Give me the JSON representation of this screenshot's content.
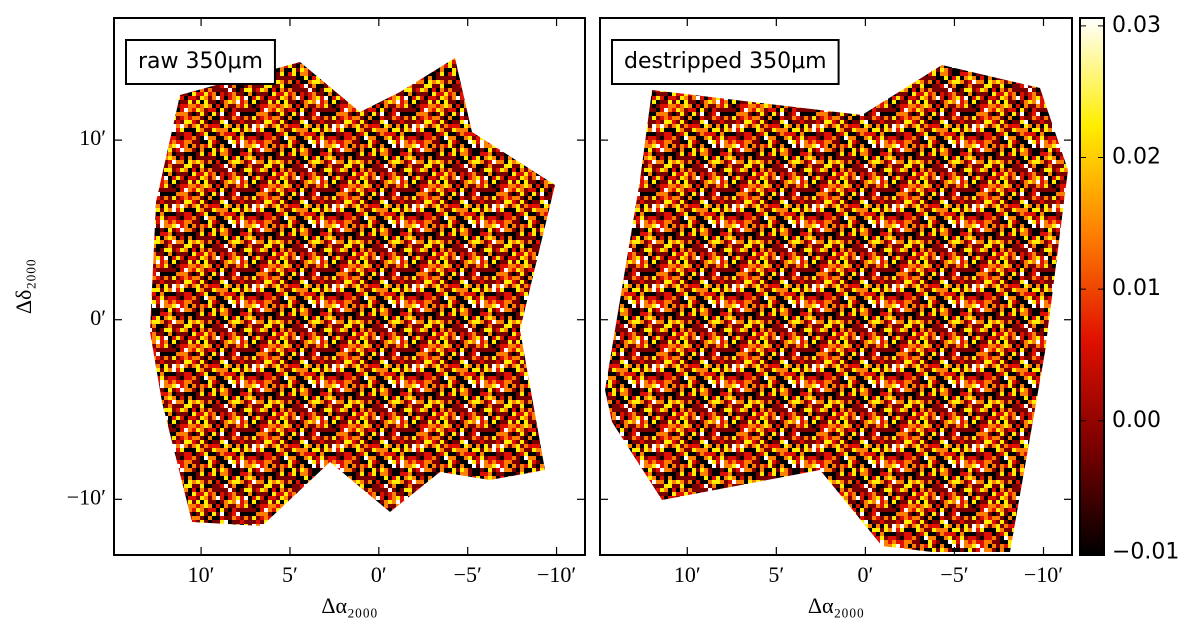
{
  "chart_data": [
    {
      "type": "image",
      "label": "raw 350μm",
      "xlabel": "Δα₂₀₀₀",
      "ylabel": "Δδ₂₀₀₀",
      "xlim": [
        14.9,
        -11.6
      ],
      "ylim": [
        -13.1,
        16.8
      ],
      "xticks": [
        {
          "value": 10,
          "label": "10′"
        },
        {
          "value": 5,
          "label": "5′"
        },
        {
          "value": 0,
          "label": "0′"
        },
        {
          "value": -5,
          "label": "−5′"
        },
        {
          "value": -10,
          "label": "−10′"
        }
      ],
      "yticks": [
        {
          "value": 10,
          "label": "10′"
        },
        {
          "value": 0,
          "label": "0′"
        },
        {
          "value": -10,
          "label": "−10′"
        }
      ]
    },
    {
      "type": "image",
      "label": "destripped 350μm",
      "xlabel": "Δα₂₀₀₀",
      "xlim": [
        14.9,
        -11.6
      ],
      "ylim": [
        -13.1,
        16.8
      ],
      "xticks": [
        {
          "value": 10,
          "label": "10′"
        },
        {
          "value": 5,
          "label": "5′"
        },
        {
          "value": 0,
          "label": "0′"
        },
        {
          "value": -5,
          "label": "−5′"
        },
        {
          "value": -10,
          "label": "−10′"
        }
      ],
      "yticks": [
        10,
        0,
        -10
      ]
    }
  ],
  "colorbar": {
    "lim": [
      -0.0102,
      0.0306
    ],
    "ticks": [
      0.03,
      0.02,
      0.01,
      {
        "value": 0,
        "label": "0.00"
      },
      {
        "value": -0.01,
        "label": "−0.01"
      }
    ],
    "colors": [
      "#000000",
      "#7a0000",
      "#e01000",
      "#ff8000",
      "#ffee00",
      "#ffffff"
    ]
  }
}
